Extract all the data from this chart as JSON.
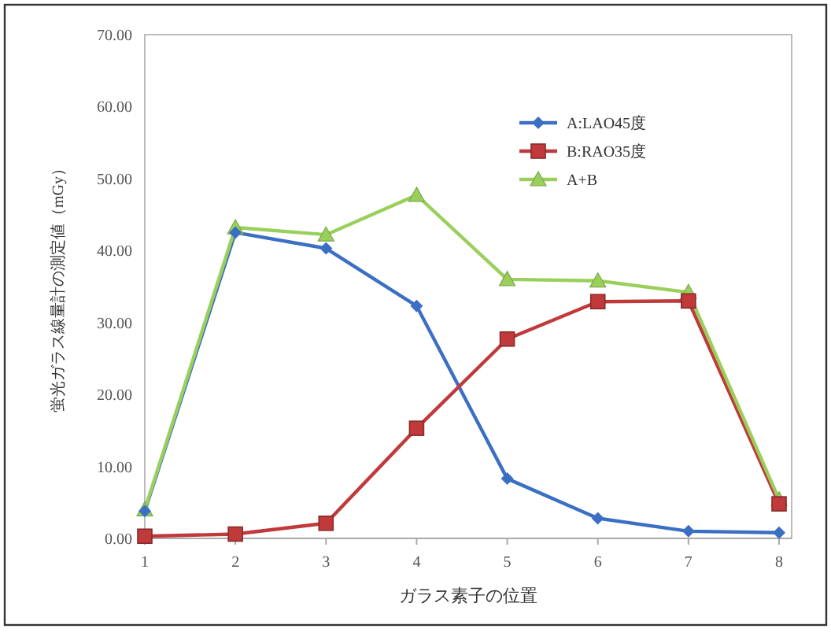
{
  "chart_data": {
    "type": "line",
    "xlabel": "ガラス素子の位置",
    "ylabel": "蛍光ガラス線量計の測定値（mGy）",
    "categories": [
      "1",
      "2",
      "3",
      "4",
      "5",
      "6",
      "7",
      "8"
    ],
    "series": [
      {
        "name": "A:LAO45度",
        "color": "#3b6fc4",
        "marker": "diamond",
        "values": [
          3.8,
          42.5,
          40.3,
          32.3,
          8.3,
          2.8,
          1.0,
          0.8
        ]
      },
      {
        "name": "B:RAO35度",
        "color": "#c0393b",
        "marker": "square",
        "values": [
          0.3,
          0.6,
          2.1,
          15.3,
          27.7,
          32.9,
          33.0,
          4.8
        ]
      },
      {
        "name": "A+B",
        "color": "#9bcf5c",
        "marker": "triangle",
        "values": [
          4.0,
          43.2,
          42.2,
          47.7,
          36.0,
          35.8,
          34.2,
          5.4
        ]
      }
    ],
    "ylim": [
      0,
      70
    ],
    "yticks": [
      {
        "value": 0,
        "label": "0.00"
      },
      {
        "value": 10,
        "label": "10.00"
      },
      {
        "value": 20,
        "label": "20.00"
      },
      {
        "value": 30,
        "label": "30.00"
      },
      {
        "value": 40,
        "label": "40.00"
      },
      {
        "value": 50,
        "label": "50.00"
      },
      {
        "value": 60,
        "label": "60.00"
      },
      {
        "value": 70,
        "label": "70.00"
      }
    ],
    "grid": false,
    "legend": "top right",
    "line_style": "solid"
  }
}
